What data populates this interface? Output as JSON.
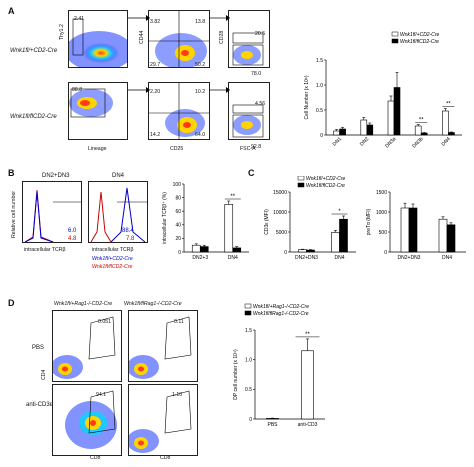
{
  "panelA": {
    "letter": "A",
    "row1_label": "Wnk1fl/+CD2-Cre",
    "row2_label": "Wnk1fl/flCD2-Cre",
    "ylabel_thy": "Thy1.2",
    "xlabel_lineage": "Lineage",
    "ylabel_cd44": "CD44",
    "xlabel_cd25": "CD25",
    "ylabel_cd28": "CD28",
    "xlabel_fsc": "FSC-A",
    "gate_r1_plot1": "2.41",
    "gate_r2_plot1": "88.8",
    "quad_r1": [
      "3.82",
      "13.8",
      "29.7",
      "50.2"
    ],
    "quad_r2": [
      "2.20",
      "10.2",
      "14.2",
      "64.0"
    ],
    "cd28_r1": [
      "20.5",
      "78.0"
    ],
    "cd28_r2": [
      "4.56",
      "92.8"
    ]
  },
  "panelB": {
    "letter": "B",
    "hist1_title": "DN2+DN3",
    "hist2_title": "DN4",
    "ylabel": "Relative cell number",
    "xlabel": "intracellular TCRβ",
    "hist1_values": [
      "6.0",
      "4.8"
    ],
    "hist2_values": [
      "88.4",
      "7.8"
    ],
    "legend": [
      "Wnk1fl/+CD2-Cre",
      "Wnk1fl/flCD2-Cre"
    ]
  },
  "panelC": {
    "letter": "C"
  },
  "panelD": {
    "letter": "D",
    "col1_title": "Wnk1fl/+Rag1-/-CD2-Cre",
    "col2_title": "Wnk1fl/flRag1-/-CD2-Cre",
    "row1": "PBS",
    "row2": "anti-CD3ε",
    "ylabel": "CD4",
    "xlabel": "CD8",
    "gates": [
      "0.051",
      "0.11",
      "94.1",
      "1.10"
    ]
  },
  "chart_data": [
    {
      "type": "bar",
      "id": "A-right",
      "ylabel": "Cell Number (x 10⁶)",
      "ylim": [
        0,
        1.5
      ],
      "yticks": [
        "0",
        "0.5",
        "1.0",
        "1.5"
      ],
      "categories": [
        "DN1",
        "DN2",
        "DN3a",
        "DN3b",
        "DN4"
      ],
      "legend_position": "top-right",
      "series": [
        {
          "name": "Wnk1fl/+CD2-Cre",
          "color": "#ffffff",
          "values": [
            0.08,
            0.3,
            0.68,
            0.18,
            0.48
          ],
          "errors": [
            0.03,
            0.05,
            0.1,
            0.03,
            0.05
          ]
        },
        {
          "name": "Wnk1fl/flCD2-Cre",
          "color": "#000000",
          "values": [
            0.12,
            0.2,
            0.95,
            0.04,
            0.05
          ],
          "errors": [
            0.03,
            0.04,
            0.3,
            0.01,
            0.01
          ]
        }
      ],
      "significance": [
        "",
        "",
        "",
        "**",
        "**"
      ]
    },
    {
      "type": "bar",
      "id": "B-right",
      "ylabel": "intracellular TCRβ⁺ (%)",
      "ylim": [
        0,
        100
      ],
      "yticks": [
        "0",
        "20",
        "40",
        "60",
        "80",
        "100"
      ],
      "categories": [
        "DN2+3",
        "DN4"
      ],
      "series": [
        {
          "name": "Wnk1fl/+CD2-Cre",
          "color": "#ffffff",
          "values": [
            10,
            70
          ],
          "errors": [
            2,
            5
          ]
        },
        {
          "name": "Wnk1fl/flCD2-Cre",
          "color": "#000000",
          "values": [
            8,
            6
          ],
          "errors": [
            2,
            2
          ]
        }
      ],
      "significance": [
        "",
        "**"
      ]
    },
    {
      "type": "bar",
      "id": "C-left",
      "ylabel": "CD3ε (MFI)",
      "ylim": [
        0,
        15000
      ],
      "yticks": [
        "0",
        "5000",
        "10000",
        "15000"
      ],
      "categories": [
        "DN2+DN3",
        "DN4"
      ],
      "legend_position": "top-right",
      "series": [
        {
          "name": "Wnk1fl/+CD2-Cre",
          "color": "#ffffff",
          "values": [
            600,
            4900
          ],
          "errors": [
            100,
            500
          ]
        },
        {
          "name": "Wnk1fl/flCD2-Cre",
          "color": "#000000",
          "values": [
            500,
            8200
          ],
          "errors": [
            100,
            800
          ]
        }
      ],
      "significance": [
        "",
        "*"
      ]
    },
    {
      "type": "bar",
      "id": "C-right",
      "ylabel": "preTα (MFI)",
      "ylim": [
        0,
        1500
      ],
      "yticks": [
        "0",
        "500",
        "1000",
        "1500"
      ],
      "categories": [
        "DN2+DN3",
        "DN4"
      ],
      "series": [
        {
          "name": "Wnk1fl/+CD2-Cre",
          "color": "#ffffff",
          "values": [
            1100,
            820
          ],
          "errors": [
            120,
            60
          ]
        },
        {
          "name": "Wnk1fl/flCD2-Cre",
          "color": "#000000",
          "values": [
            1100,
            680
          ],
          "errors": [
            100,
            50
          ]
        }
      ],
      "significance": [
        "",
        ""
      ]
    },
    {
      "type": "bar",
      "id": "D-right",
      "ylabel": "DP cell number (x 10⁴)",
      "ylim": [
        0,
        1.5
      ],
      "yticks": [
        "0",
        "0.5",
        "1.0",
        "1.5"
      ],
      "categories": [
        "PBS",
        "anti-CD3"
      ],
      "legend_position": "top",
      "series": [
        {
          "name": "Wnk1fl/+Rag1-/-CD2-Cre",
          "color": "#ffffff",
          "values": [
            0.01,
            1.15
          ],
          "errors": [
            0.005,
            0.2
          ]
        }
      ],
      "series_legend2": "Wnk1fl/flRag1-/-CD2-Cre",
      "significance": [
        "",
        "**"
      ]
    }
  ]
}
